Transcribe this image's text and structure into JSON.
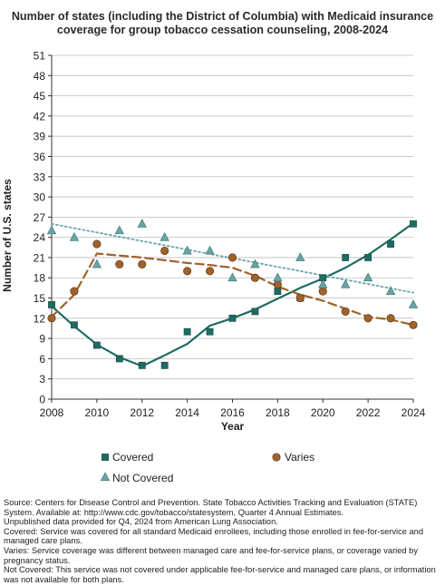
{
  "chart_data": {
    "type": "line",
    "title": "Number of states (including the District of Columbia) with Medicaid insurance coverage for group tobacco cessation counseling, 2008-2024",
    "xlabel": "Year",
    "ylabel": "Number of U.S. states",
    "xlim": [
      2008,
      2024
    ],
    "ylim": [
      0,
      51
    ],
    "xticks": [
      "2008",
      "2010",
      "2012",
      "2014",
      "2016",
      "2018",
      "2020",
      "2022",
      "2024"
    ],
    "yticks": [
      "0",
      "3",
      "6",
      "9",
      "12",
      "15",
      "18",
      "21",
      "24",
      "27",
      "30",
      "33",
      "36",
      "39",
      "42",
      "45",
      "48",
      "51"
    ],
    "grid": "horizontal",
    "legend_position": "bottom",
    "x": [
      2008,
      2009,
      2010,
      2011,
      2012,
      2013,
      2014,
      2015,
      2016,
      2017,
      2018,
      2019,
      2020,
      2021,
      2022,
      2023,
      2024
    ],
    "series": [
      {
        "name": "Covered",
        "marker": "square",
        "color": "#1e6b62",
        "values": [
          14,
          11,
          8,
          6,
          5,
          5,
          10,
          10,
          12,
          13,
          16,
          15,
          18,
          21,
          21,
          23,
          26
        ],
        "trend": {
          "style": "solid",
          "x": [
            2008,
            2009,
            2010,
            2011,
            2012,
            2013,
            2014,
            2015,
            2016,
            2017,
            2018,
            2019,
            2020,
            2021,
            2022,
            2023,
            2024
          ],
          "y": [
            13.8,
            10.8,
            8.1,
            6.2,
            4.9,
            6.5,
            8.2,
            10.9,
            12.0,
            13.3,
            14.9,
            16.5,
            17.9,
            19.5,
            21.4,
            23.7,
            26.1
          ]
        }
      },
      {
        "name": "Varies",
        "marker": "circle",
        "color": "#a0622a",
        "values": [
          12,
          16,
          23,
          20,
          20,
          22,
          19,
          19,
          21,
          18,
          17,
          15,
          16,
          13,
          12,
          12,
          11
        ],
        "trend": {
          "style": "dashed",
          "x": [
            2008,
            2009,
            2010,
            2011,
            2012,
            2013,
            2014,
            2015,
            2016,
            2017,
            2018,
            2019,
            2020,
            2021,
            2022,
            2023,
            2024
          ],
          "y": [
            12.2,
            15.5,
            21.6,
            21.3,
            21.0,
            20.6,
            20.2,
            19.9,
            19.5,
            18.3,
            16.7,
            15.5,
            14.6,
            13.4,
            12.2,
            11.8,
            11.0
          ]
        }
      },
      {
        "name": "Not Covered",
        "marker": "triangle",
        "color": "#6aa5a5",
        "values": [
          25,
          24,
          20,
          25,
          26,
          24,
          22,
          22,
          18,
          20,
          18,
          21,
          17,
          17,
          18,
          16,
          14
        ],
        "trend": {
          "style": "dotted",
          "x": [
            2008,
            2024
          ],
          "y": [
            26.0,
            15.8
          ]
        }
      }
    ]
  },
  "notes": [
    "Source: Centers for Disease Control and Prevention. State Tobacco Activities Tracking and Evaluation (STATE) System. Available at: http://www.cdc.gov/tobacco/statesystem, Quarter 4 Annual Estimates.",
    "Unpublished data provided for Q4, 2024 from American Lung Association.",
    "Covered: Service was covered for all standard Medicaid enrollees, including those enrolled in fee-for-service and managed care plans.",
    "Varies: Service coverage was different between managed care and fee-for-service plans, or coverage varied by pregnancy status.",
    "Not Covered: This service was not covered under applicable fee-for-service and managed care plans, or information was not available for both plans."
  ]
}
